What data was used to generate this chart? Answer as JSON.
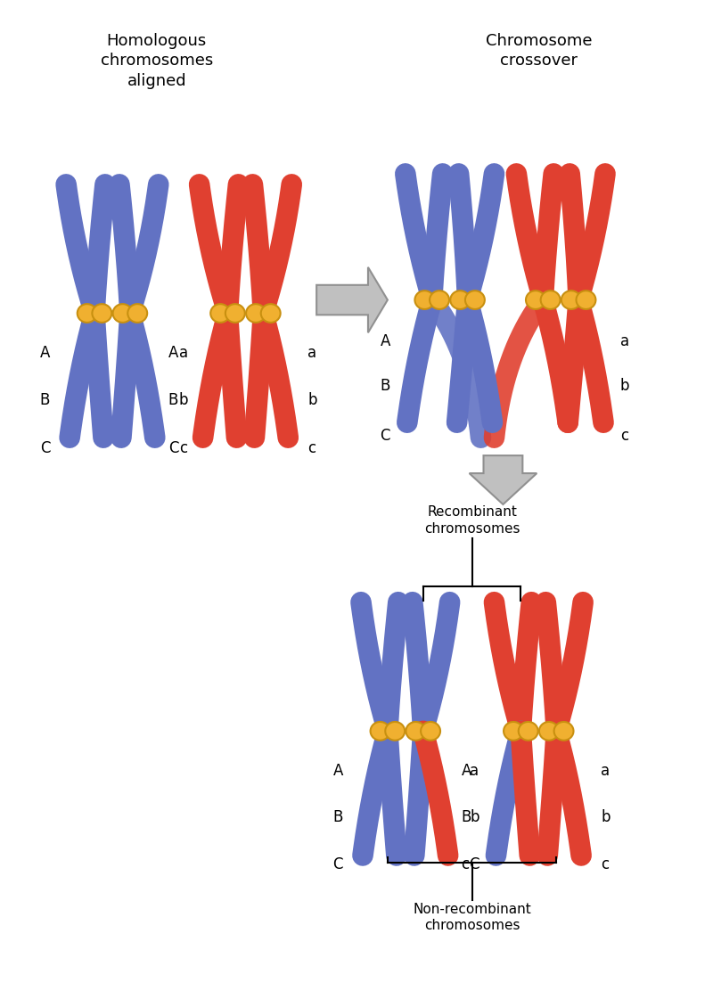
{
  "blue": "#6272c3",
  "blue_light": "#7a8fd0",
  "blue_dark": "#4a5aaa",
  "red": "#e04030",
  "red_light": "#e86050",
  "red_dark": "#c03020",
  "gold": "#f0b030",
  "gold_edge": "#c89010",
  "arrow_fill": "#c0c0c0",
  "arrow_edge": "#909090",
  "bg": "#ffffff",
  "black": "#000000",
  "title1": "Homologous\nchromosomes\naligned",
  "title2": "Chromosome\ncrossover",
  "label_recombinant": "Recombinant\nchromosomes",
  "label_nonrecombinant": "Non-recombinant\nchromosomes",
  "fs_title": 13,
  "fs_label": 11,
  "fs_gene": 12,
  "fig_w": 8.0,
  "fig_h": 11.21,
  "dpi": 100
}
